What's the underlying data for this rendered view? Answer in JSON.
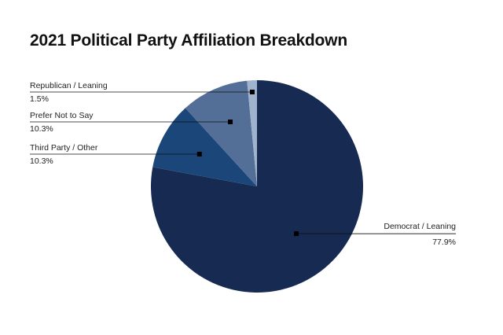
{
  "chart_data": {
    "type": "pie",
    "title": "2021 Political Party Affiliation Breakdown",
    "slices": [
      {
        "label": "Democrat / Leaning",
        "value": 77.9,
        "value_label": "77.9%",
        "color": "#172a52"
      },
      {
        "label": "Third Party / Other",
        "value": 10.3,
        "value_label": "10.3%",
        "color": "#1b4679"
      },
      {
        "label": "Prefer Not to Say",
        "value": 10.3,
        "value_label": "10.3%",
        "color": "#536f97"
      },
      {
        "label": "Republican / Leaning",
        "value": 1.5,
        "value_label": "1.5%",
        "color": "#9fb3cc"
      }
    ],
    "start_angle_deg": 0,
    "direction": "clockwise",
    "legend": "callouts"
  }
}
